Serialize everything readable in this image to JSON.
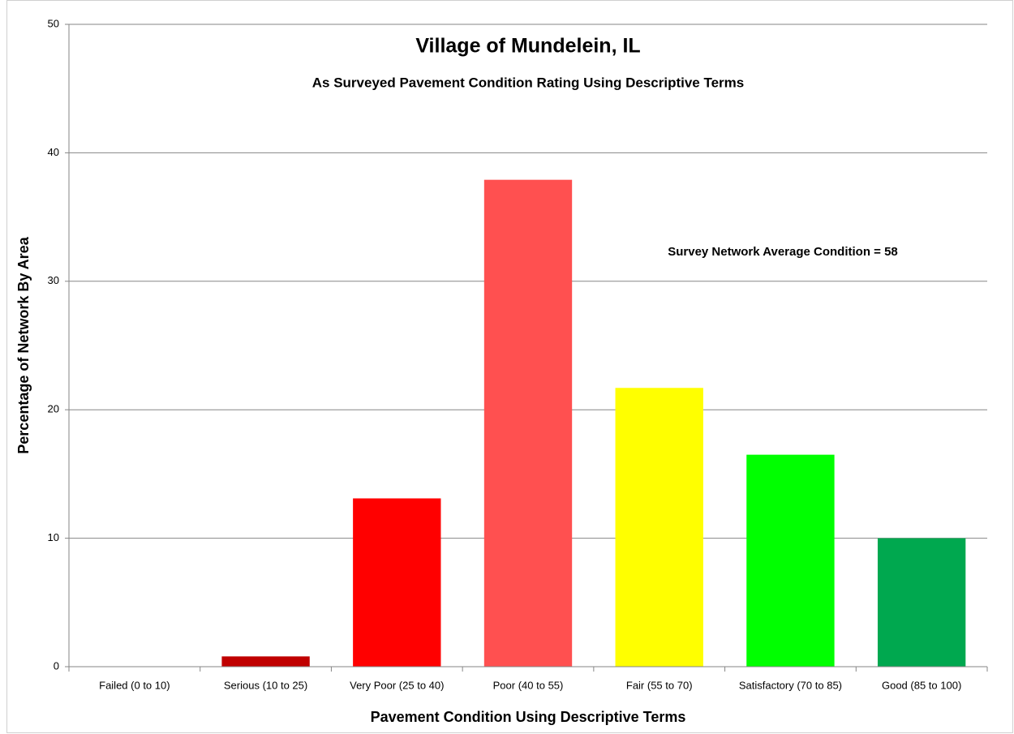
{
  "chart_data": {
    "type": "bar",
    "title": "Village of Mundelein, IL",
    "subtitle": "As Surveyed Pavement Condition Rating Using Descriptive Terms",
    "annotation": "Survey Network Average Condition  = 58",
    "x_label": "Pavement Condition Using Descriptive Terms",
    "y_label": "Percentage of Network By Area",
    "categories": [
      "Failed (0 to 10)",
      "Serious (10 to 25)",
      "Very Poor (25 to 40)",
      "Poor (40 to 55)",
      "Fair (55 to 70)",
      "Satisfactory (70 to 85)",
      "Good (85 to 100)"
    ],
    "values": [
      0,
      0.8,
      13.1,
      37.9,
      21.7,
      16.5,
      10.0
    ],
    "colors": [
      "#c00000",
      "#c00000",
      "#ff0000",
      "#ff5050",
      "#ffff00",
      "#00ff00",
      "#00a84f"
    ],
    "ylim": [
      0,
      50
    ],
    "yticks": [
      0,
      10,
      20,
      30,
      40,
      50
    ],
    "grid": true
  }
}
